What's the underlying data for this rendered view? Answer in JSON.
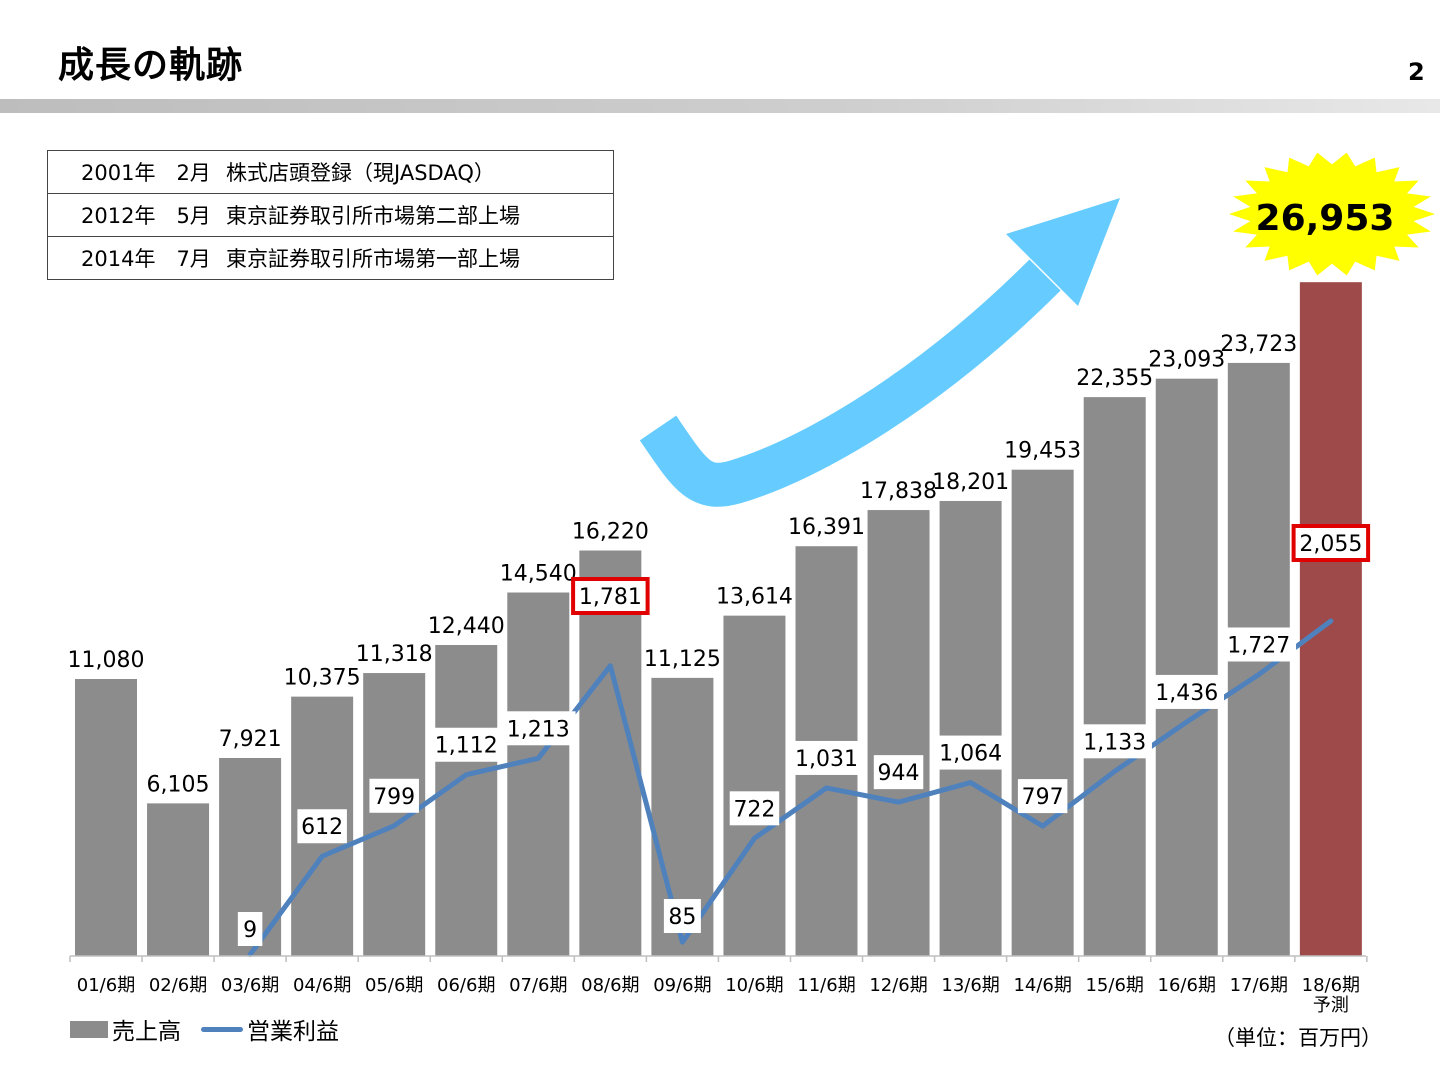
{
  "header": {
    "title": "成長の軌跡",
    "page_number": "2"
  },
  "history": [
    {
      "date": "2001年　2月",
      "event": "株式店頭登録（現JASDAQ）"
    },
    {
      "date": "2012年　5月",
      "event": "東京証券取引所市場第二部上場"
    },
    {
      "date": "2014年　7月",
      "event": "東京証券取引所市場第一部上場"
    }
  ],
  "highlight": {
    "value": "26,953",
    "burst_color": "#ffff00"
  },
  "growth_arrow": {
    "color": "#66ccff",
    "icon": "growth-arrow-icon"
  },
  "legend": {
    "bar_label": "売上高",
    "line_label": "営業利益"
  },
  "unit_note": "（単位：百万円）",
  "colors": {
    "bar": "#8c8c8c",
    "forecast_bar": "#9e4a4a",
    "line": "#4f81bd",
    "highlight_box": "#e00000"
  },
  "chart_data": {
    "type": "bar",
    "categories": [
      "01/6期",
      "02/6期",
      "03/6期",
      "04/6期",
      "05/6期",
      "06/6期",
      "07/6期",
      "08/6期",
      "09/6期",
      "10/6期",
      "11/6期",
      "12/6期",
      "13/6期",
      "14/6期",
      "15/6期",
      "16/6期",
      "17/6期",
      "18/6期"
    ],
    "forecast_sublabel": "予測",
    "forecast_index": 17,
    "ylim": [
      0,
      27000
    ],
    "series": [
      {
        "name": "売上高",
        "type": "bar",
        "values": [
          11080,
          6105,
          7921,
          10375,
          11318,
          12440,
          14540,
          16220,
          11125,
          13614,
          16391,
          17838,
          18201,
          19453,
          22355,
          23093,
          23723,
          26953
        ],
        "labels": [
          "11,080",
          "6,105",
          "7,921",
          "10,375",
          "11,318",
          "12,440",
          "14,540",
          "16,220",
          "11,125",
          "13,614",
          "16,391",
          "17,838",
          "18,201",
          "19,453",
          "22,355",
          "23,093",
          "23,723",
          ""
        ]
      },
      {
        "name": "営業利益",
        "type": "line",
        "values": [
          null,
          null,
          9,
          612,
          799,
          1112,
          1213,
          1781,
          85,
          722,
          1031,
          944,
          1064,
          797,
          1133,
          1436,
          1727,
          2055
        ],
        "labels": [
          "",
          "",
          "9",
          "612",
          "799",
          "1,112",
          "1,213",
          "1,781",
          "85",
          "722",
          "1,031",
          "944",
          "1,064",
          "797",
          "1,133",
          "1,436",
          "1,727",
          "2,055"
        ],
        "highlighted": [
          7,
          17
        ]
      }
    ]
  }
}
